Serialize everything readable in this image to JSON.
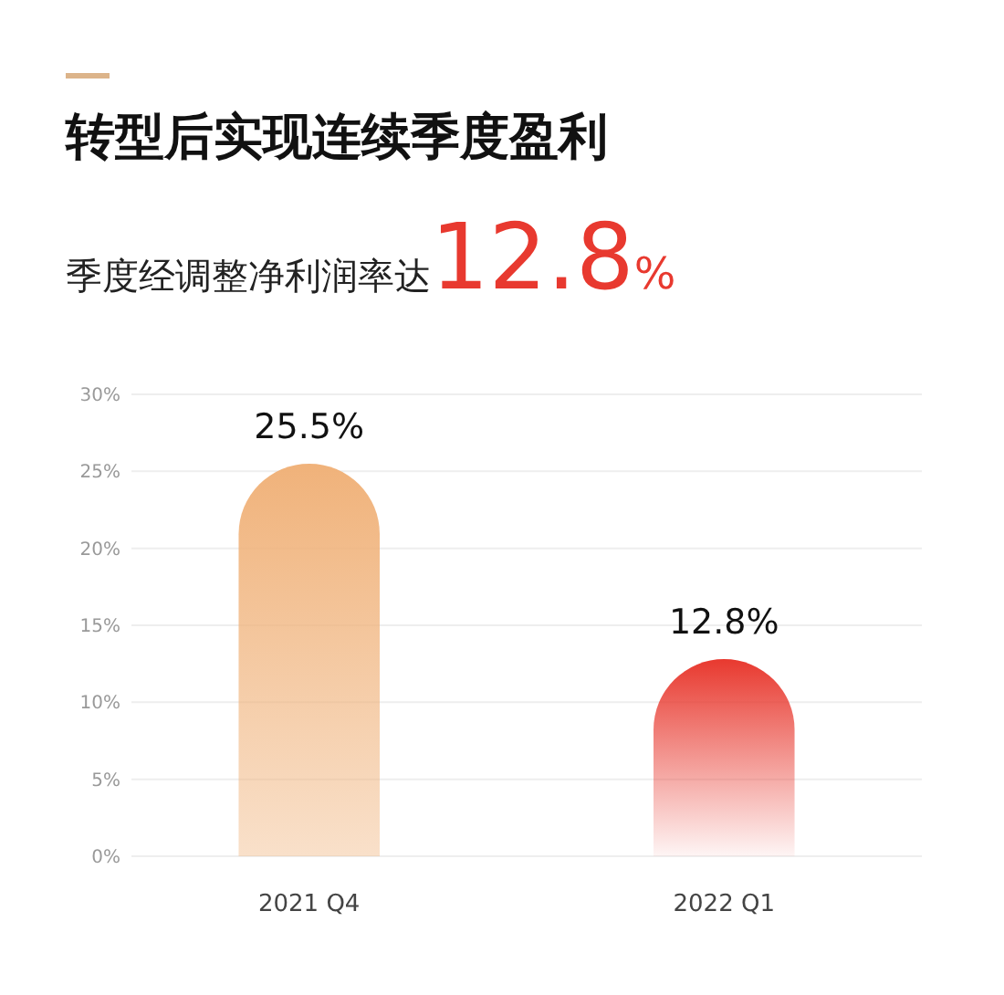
{
  "chart_data": {
    "type": "bar",
    "title": "转型后实现连续季度盈利",
    "subtitle": "季度经调整净利润率达12.8%",
    "categories": [
      "2021 Q4",
      "2022 Q1"
    ],
    "values": [
      25.5,
      12.8
    ],
    "colors": [
      "#f0b27a",
      "#e8392f"
    ],
    "value_labels": [
      "25.5%",
      "12.8%"
    ],
    "ylim": [
      0,
      30
    ],
    "yticks": [
      {
        "value": 0,
        "label": "0%"
      },
      {
        "value": 5,
        "label": "5%"
      },
      {
        "value": 10,
        "label": "10%"
      },
      {
        "value": 15,
        "label": "15%"
      },
      {
        "value": 20,
        "label": "20%"
      },
      {
        "value": 25,
        "label": "25%"
      },
      {
        "value": 30,
        "label": "30%"
      }
    ],
    "grid": "y"
  }
}
